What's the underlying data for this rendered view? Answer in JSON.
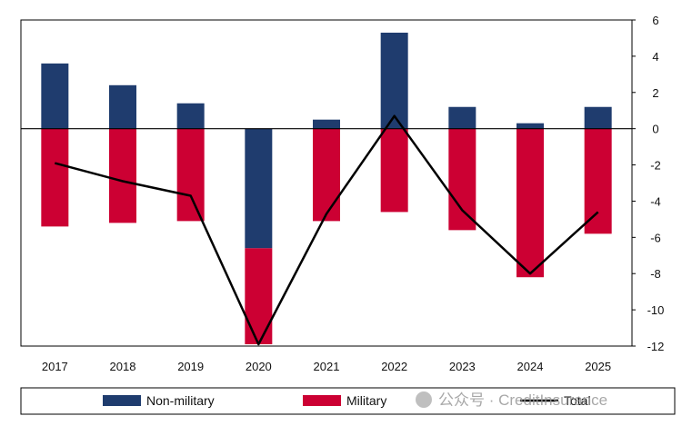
{
  "chart_data": {
    "type": "bar",
    "stacked": true,
    "title": "",
    "xlabel": "",
    "ylabel": "",
    "categories": [
      "2017",
      "2018",
      "2019",
      "2020",
      "2021",
      "2022",
      "2023",
      "2024",
      "2025"
    ],
    "series": [
      {
        "name": "Non-military",
        "kind": "bar",
        "color": "#1f3c6e",
        "values": [
          3.6,
          2.4,
          1.4,
          -6.6,
          0.5,
          5.3,
          1.2,
          0.3,
          1.2
        ]
      },
      {
        "name": "Military",
        "kind": "bar",
        "color": "#cc0033",
        "values": [
          -5.4,
          -5.2,
          -5.1,
          -5.3,
          -5.1,
          -4.6,
          -5.6,
          -8.2,
          -5.8
        ]
      },
      {
        "name": "Total",
        "kind": "line",
        "color": "#000000",
        "values": [
          -1.9,
          -2.9,
          -3.7,
          -11.9,
          -4.7,
          0.7,
          -4.5,
          -8.0,
          -4.6
        ]
      }
    ],
    "yaxis": {
      "position": "right",
      "ylim": [
        -12,
        6
      ],
      "ticks": [
        "6",
        "4",
        "2",
        "0",
        "-2",
        "-4",
        "-6",
        "-8",
        "-10",
        "-12"
      ]
    },
    "grid": false,
    "legend": {
      "placement": "bottom"
    }
  },
  "watermark": "公众号 · CreditInsurance"
}
